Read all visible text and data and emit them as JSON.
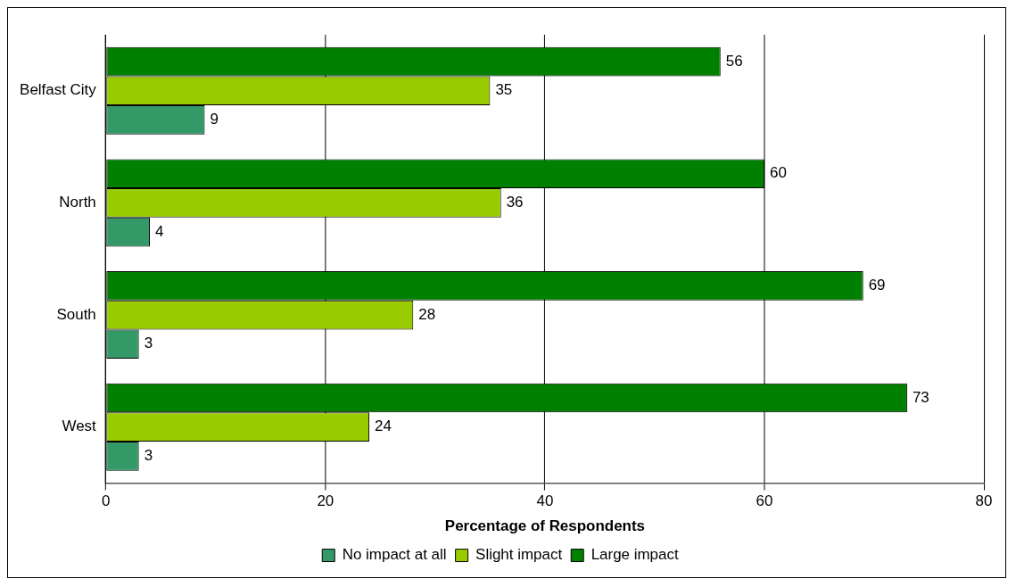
{
  "chart_data": {
    "type": "bar",
    "orientation": "horizontal",
    "xlabel": "Percentage of Respondents",
    "categories": [
      "Belfast City",
      "North",
      "South",
      "West"
    ],
    "series": [
      {
        "name": "Large impact",
        "color": "#008000",
        "values": [
          56,
          60,
          69,
          73
        ]
      },
      {
        "name": "Slight impact",
        "color": "#99cc00",
        "values": [
          35,
          36,
          28,
          24
        ]
      },
      {
        "name": "No impact at all",
        "color": "#339966",
        "values": [
          9,
          4,
          3,
          3
        ]
      }
    ],
    "xlim": [
      0,
      80
    ],
    "xticks": [
      0,
      20,
      40,
      60,
      80
    ],
    "grid": "x",
    "legend": "bottom",
    "data_labels": true
  }
}
